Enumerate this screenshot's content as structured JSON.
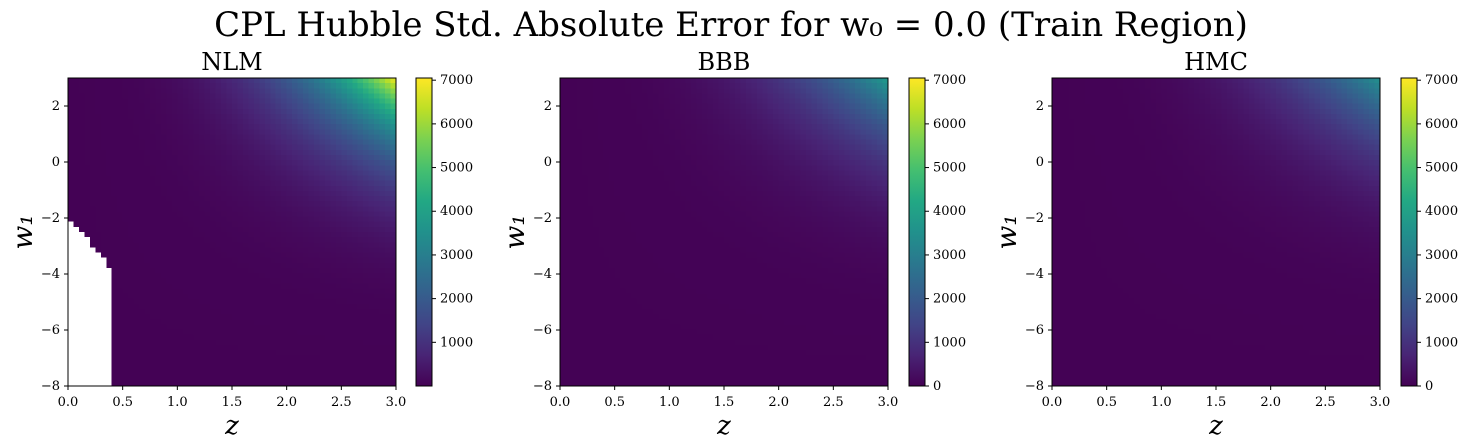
{
  "figure": {
    "title": "CPL Hubble Std. Absolute Error for w₀ = 0.0 (Train Region)"
  },
  "chart_data": [
    {
      "type": "heatmap",
      "title": "NLM",
      "xlabel": "z",
      "ylabel": "w₁",
      "xlim": [
        0.0,
        3.0
      ],
      "ylim": [
        -8,
        3
      ],
      "x_ticks": [
        "0.0",
        "0.5",
        "1.0",
        "1.5",
        "2.0",
        "2.5",
        "3.0"
      ],
      "y_ticks": [
        "2",
        "0",
        "−2",
        "−4",
        "−6",
        "−8"
      ],
      "colorbar": {
        "min": 0,
        "max": 7050,
        "ticks": [
          "1000",
          "2000",
          "3000",
          "4000",
          "5000",
          "6000",
          "7000"
        ],
        "colormap": "viridis"
      },
      "corner_max_value": 7000,
      "masked_region": "white (NaN) cells at low z (about 0 to 0.4) for w₁ below about −2"
    },
    {
      "type": "heatmap",
      "title": "BBB",
      "xlabel": "z",
      "ylabel": "w₁",
      "xlim": [
        0.0,
        3.0
      ],
      "ylim": [
        -8,
        3
      ],
      "x_ticks": [
        "0.0",
        "0.5",
        "1.0",
        "1.5",
        "2.0",
        "2.5",
        "3.0"
      ],
      "y_ticks": [
        "2",
        "0",
        "−2",
        "−4",
        "−6",
        "−8"
      ],
      "colorbar": {
        "min": 0,
        "max": 7050,
        "ticks": [
          "0",
          "1000",
          "2000",
          "3000",
          "4000",
          "5000",
          "6000",
          "7000"
        ],
        "colormap": "viridis"
      },
      "corner_max_value": 3800
    },
    {
      "type": "heatmap",
      "title": "HMC",
      "xlabel": "z",
      "ylabel": "w₁",
      "xlim": [
        0.0,
        3.0
      ],
      "ylim": [
        -8,
        3
      ],
      "x_ticks": [
        "0.0",
        "0.5",
        "1.0",
        "1.5",
        "2.0",
        "2.5",
        "3.0"
      ],
      "y_ticks": [
        "2",
        "0",
        "−2",
        "−4",
        "−6",
        "−8"
      ],
      "colorbar": {
        "min": 0,
        "max": 7050,
        "ticks": [
          "0",
          "1000",
          "2000",
          "3000",
          "4000",
          "5000",
          "6000",
          "7000"
        ],
        "colormap": "viridis"
      },
      "corner_max_value": 3500
    }
  ]
}
